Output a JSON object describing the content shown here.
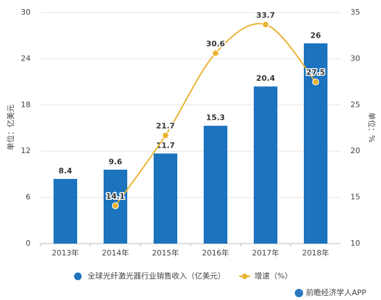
{
  "chart_data": {
    "type": "bar",
    "categories": [
      "2013年",
      "2014年",
      "2015年",
      "2016年",
      "2017年",
      "2018年"
    ],
    "series": [
      {
        "name": "全球光纤激光器行业销售收入（亿美元）",
        "color": "#1b74bd",
        "values": [
          8.4,
          9.6,
          11.7,
          15.3,
          20.4,
          26
        ]
      },
      {
        "name": "增速（%）",
        "color": "#e9b332",
        "type": "line",
        "axis": "y2",
        "values": [
          null,
          14.1,
          21.7,
          30.6,
          33.7,
          27.5
        ]
      }
    ],
    "ylabel": "单位：亿美元",
    "y2label": "单位：%",
    "ylim": [
      0,
      30
    ],
    "yticks": [
      0,
      6,
      12,
      18,
      24,
      30
    ],
    "y2lim": [
      10,
      35
    ],
    "y2ticks": [
      10,
      15,
      20,
      25,
      30,
      35
    ],
    "source": "前瞻经济学人APP"
  }
}
